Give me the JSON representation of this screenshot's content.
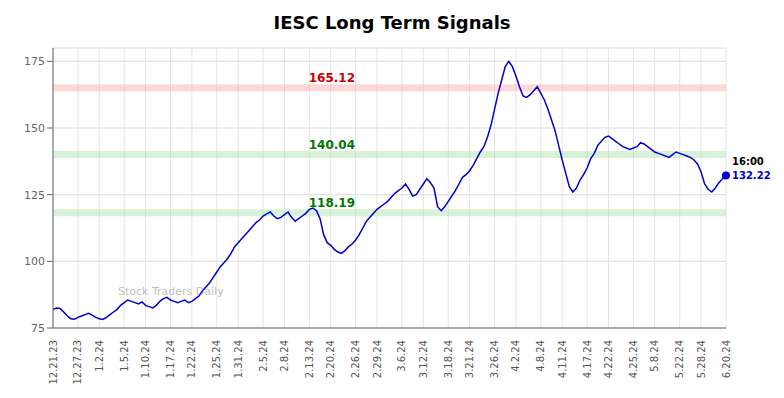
{
  "chart_data": {
    "type": "line",
    "title": "IESC Long Term Signals",
    "watermark": "Stock Traders Daily",
    "color": "#0000cc",
    "grid": true,
    "ylim": [
      75,
      180
    ],
    "yticks": [
      75,
      100,
      125,
      150,
      175
    ],
    "hlines": [
      {
        "y": 165.12,
        "label": "165.12",
        "color": "#ffaaaa",
        "label_color": "#cc0000"
      },
      {
        "y": 140.04,
        "label": "140.04",
        "color": "#aaddaa",
        "label_color": "#007700"
      },
      {
        "y": 118.19,
        "label": "118.19",
        "color": "#aaddaa",
        "label_color": "#007700"
      }
    ],
    "last_point": {
      "time_label": "16:00",
      "value_label": "132.22",
      "color": "#0000cc"
    },
    "categories": [
      "12.21.23",
      null,
      null,
      null,
      null,
      null,
      null,
      "12.27.23",
      null,
      null,
      null,
      null,
      null,
      "1.2.24",
      null,
      null,
      null,
      null,
      null,
      null,
      "1.5.24",
      null,
      null,
      null,
      null,
      null,
      "1.10.24",
      null,
      null,
      null,
      null,
      null,
      null,
      "1.17.24",
      null,
      null,
      null,
      null,
      null,
      "1.22.24",
      null,
      null,
      null,
      null,
      null,
      null,
      "1.25.24",
      null,
      null,
      null,
      null,
      null,
      "1.31.24",
      null,
      null,
      null,
      null,
      null,
      null,
      "2.5.24",
      null,
      null,
      null,
      null,
      null,
      "2.8.24",
      null,
      null,
      null,
      null,
      null,
      null,
      "2.13.24",
      null,
      null,
      null,
      null,
      null,
      "2.20.24",
      null,
      null,
      null,
      null,
      null,
      null,
      "2.26.24",
      null,
      null,
      null,
      null,
      null,
      "2.29.24",
      null,
      null,
      null,
      null,
      null,
      null,
      "3.6.24",
      null,
      null,
      null,
      null,
      null,
      "3.12.24",
      null,
      null,
      null,
      null,
      null,
      null,
      "3.18.24",
      null,
      null,
      null,
      null,
      null,
      "3.21.24",
      null,
      null,
      null,
      null,
      null,
      null,
      "3.26.24",
      null,
      null,
      null,
      null,
      null,
      "4.2.24",
      null,
      null,
      null,
      null,
      null,
      null,
      "4.8.24",
      null,
      null,
      null,
      null,
      null,
      "4.11.24",
      null,
      null,
      null,
      null,
      null,
      null,
      "4.17.24",
      null,
      null,
      null,
      null,
      null,
      "4.22.24",
      null,
      null,
      null,
      null,
      null,
      null,
      "4.25.24",
      null,
      null,
      null,
      null,
      null,
      "5.8.24",
      null,
      null,
      null,
      null,
      null,
      null,
      "5.22.24",
      null,
      null,
      null,
      null,
      null,
      "5.28.24",
      null,
      null,
      null,
      null,
      null,
      null,
      "6.20.24"
    ],
    "values": [
      82.0,
      82.5,
      82.3,
      81.0,
      79.5,
      78.5,
      78.3,
      79.0,
      79.5,
      80.0,
      80.5,
      79.8,
      79.0,
      78.5,
      78.2,
      79.0,
      80.0,
      81.0,
      82.0,
      83.5,
      84.5,
      85.5,
      85.0,
      84.5,
      84.0,
      84.8,
      83.5,
      83.0,
      82.5,
      83.5,
      85.0,
      86.0,
      86.5,
      85.5,
      85.0,
      84.5,
      85.0,
      85.5,
      84.5,
      85.0,
      86.0,
      87.0,
      89.0,
      90.5,
      92.0,
      94.0,
      96.0,
      98.0,
      99.5,
      101.0,
      103.0,
      105.5,
      107.0,
      108.5,
      110.0,
      111.5,
      113.0,
      114.5,
      115.5,
      117.0,
      117.8,
      118.5,
      117.0,
      116.0,
      116.5,
      117.5,
      118.5,
      116.5,
      115.0,
      116.0,
      117.0,
      118.0,
      119.5,
      120.0,
      119.0,
      116.0,
      110.0,
      107.0,
      106.0,
      104.5,
      103.5,
      103.0,
      104.0,
      105.5,
      106.5,
      108.0,
      110.0,
      112.5,
      115.0,
      116.5,
      118.0,
      119.5,
      120.5,
      121.5,
      122.5,
      124.0,
      125.5,
      126.5,
      127.5,
      129.0,
      127.0,
      124.5,
      125.0,
      127.0,
      129.0,
      131.0,
      129.5,
      127.5,
      120.5,
      119.0,
      120.5,
      122.5,
      124.5,
      126.5,
      129.0,
      131.5,
      132.5,
      134.0,
      136.0,
      138.5,
      141.0,
      143.0,
      146.5,
      151.0,
      157.0,
      163.0,
      168.0,
      173.0,
      175.0,
      173.0,
      169.5,
      165.5,
      162.0,
      161.5,
      162.5,
      164.0,
      165.5,
      163.0,
      160.5,
      157.0,
      153.0,
      149.0,
      143.5,
      138.0,
      133.0,
      128.0,
      126.0,
      127.5,
      130.5,
      132.5,
      135.0,
      138.5,
      140.5,
      143.5,
      145.0,
      146.5,
      147.0,
      146.0,
      145.0,
      144.0,
      143.0,
      142.5,
      142.0,
      142.5,
      143.0,
      144.5,
      144.0,
      143.0,
      142.0,
      141.0,
      140.5,
      140.0,
      139.5,
      139.0,
      140.0,
      141.0,
      140.5,
      140.0,
      139.5,
      139.0,
      138.0,
      136.5,
      133.5,
      129.0,
      127.0,
      126.0,
      127.5,
      129.5,
      131.0,
      132.22
    ]
  }
}
